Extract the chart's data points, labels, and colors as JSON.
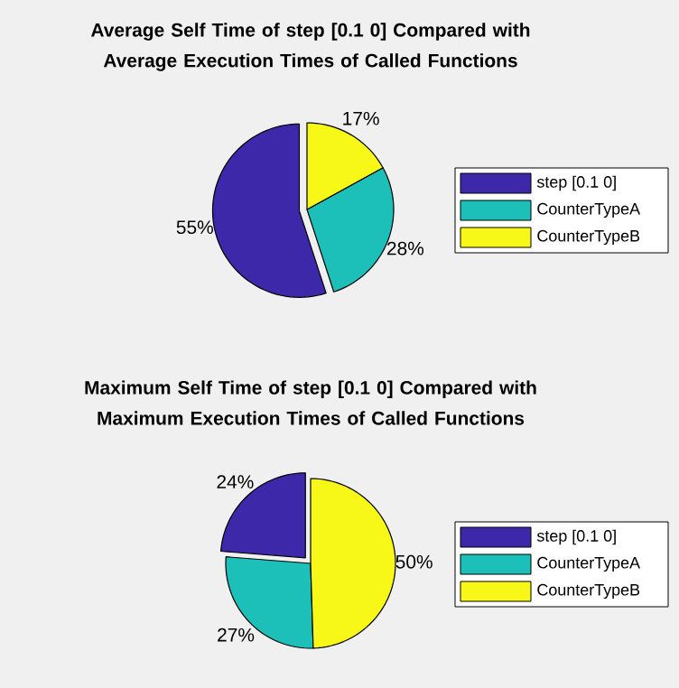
{
  "chart_data": [
    {
      "type": "pie",
      "title": "Average Self Time of step [0.1 0] Compared with Average Execution Times of Called Functions",
      "categories": [
        "step [0.1 0]",
        "CounterTypeA",
        "CounterTypeB"
      ],
      "values": [
        55,
        28,
        17
      ],
      "value_labels": [
        "55%",
        "28%",
        "17%"
      ],
      "colors": [
        "#3c28a8",
        "#1cc0b8",
        "#f8f818"
      ],
      "legend": "right"
    },
    {
      "type": "pie",
      "title": "Maximum Self Time of step [0.1 0] Compared with Maximum Execution Times of Called Functions",
      "categories": [
        "step [0.1 0]",
        "CounterTypeA",
        "CounterTypeB"
      ],
      "values": [
        24,
        27,
        50
      ],
      "value_labels": [
        "24%",
        "27%",
        "50%"
      ],
      "colors": [
        "#3c28a8",
        "#1cc0b8",
        "#f8f818"
      ],
      "legend": "right"
    }
  ]
}
